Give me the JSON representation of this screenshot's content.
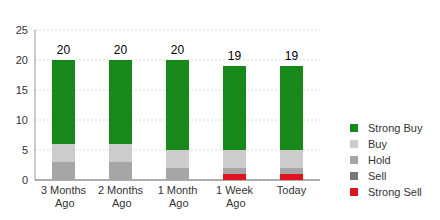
{
  "chart_data": {
    "type": "bar",
    "stacked": true,
    "grid": true,
    "legend": "right",
    "categories": [
      "3 Months Ago",
      "2 Months Ago",
      "1 Month Ago",
      "1 Week Ago",
      "Today"
    ],
    "series": [
      {
        "name": "Strong Sell",
        "color": "#e0141e",
        "values": [
          0,
          0,
          0,
          1,
          1
        ]
      },
      {
        "name": "Sell",
        "color": "#777777",
        "values": [
          0,
          0,
          0,
          0,
          0
        ]
      },
      {
        "name": "Hold",
        "color": "#a6a6a6",
        "values": [
          3,
          3,
          2,
          1,
          1
        ]
      },
      {
        "name": "Buy",
        "color": "#cccccc",
        "values": [
          3,
          3,
          3,
          3,
          3
        ]
      },
      {
        "name": "Strong Buy",
        "color": "#18881a",
        "values": [
          14,
          14,
          15,
          14,
          14
        ]
      }
    ],
    "totals": [
      20,
      20,
      20,
      19,
      19
    ],
    "ylim": [
      0,
      25
    ],
    "yticks": [
      0,
      5,
      10,
      15,
      20,
      25
    ]
  }
}
